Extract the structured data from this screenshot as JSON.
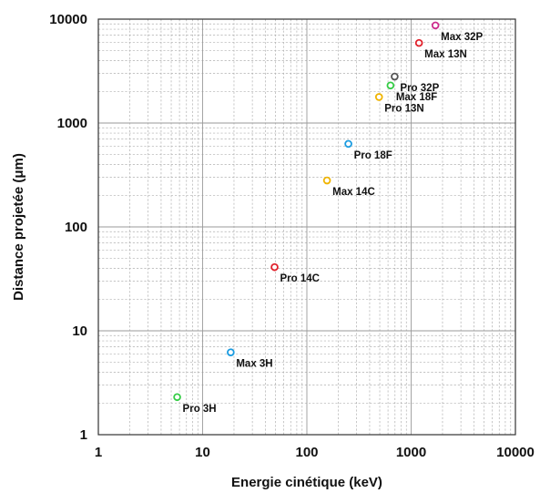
{
  "chart_data": {
    "type": "scatter",
    "title": "",
    "xlabel": "Energie cinétique (keV)",
    "ylabel": "Distance projetée (μm)",
    "xscale": "log",
    "yscale": "log",
    "xlim": [
      1,
      10000
    ],
    "ylim": [
      1,
      10000
    ],
    "grid": true,
    "x_ticks": [
      {
        "value": 1,
        "label": "1"
      },
      {
        "value": 10,
        "label": "10"
      },
      {
        "value": 100,
        "label": "100"
      },
      {
        "value": 1000,
        "label": "1000"
      },
      {
        "value": 10000,
        "label": "10000"
      }
    ],
    "y_ticks": [
      {
        "value": 1,
        "label": "1"
      },
      {
        "value": 10,
        "label": "10"
      },
      {
        "value": 100,
        "label": "100"
      },
      {
        "value": 1000,
        "label": "1000"
      },
      {
        "value": 10000,
        "label": "10000"
      }
    ],
    "points": [
      {
        "label": "Pro 3H",
        "x": 5.7,
        "y": 2.3,
        "color": "#33cc44"
      },
      {
        "label": "Max 3H",
        "x": 18.6,
        "y": 6.2,
        "color": "#1a9be0"
      },
      {
        "label": "Pro 14C",
        "x": 49,
        "y": 41,
        "color": "#e0202a"
      },
      {
        "label": "Max 14C",
        "x": 156,
        "y": 280,
        "color": "#f0b400"
      },
      {
        "label": "Pro 18F",
        "x": 250,
        "y": 630,
        "color": "#1a9be0"
      },
      {
        "label": "Pro 13N",
        "x": 492,
        "y": 1780,
        "color": "#f0b400"
      },
      {
        "label": "Pro 32P",
        "x": 695,
        "y": 2800,
        "color": "#555555"
      },
      {
        "label": "Max 18F",
        "x": 634,
        "y": 2300,
        "color": "#33cc44"
      },
      {
        "label": "Max 13N",
        "x": 1190,
        "y": 5900,
        "color": "#e0202a"
      },
      {
        "label": "Max 32P",
        "x": 1710,
        "y": 8700,
        "color": "#cc2a8c"
      }
    ]
  }
}
